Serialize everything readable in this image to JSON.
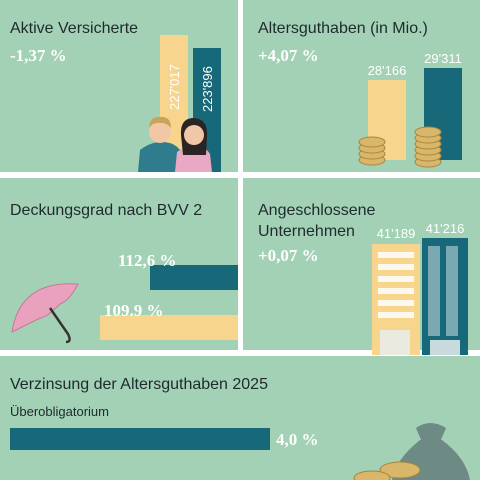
{
  "panels": [
    {
      "title": "Aktive Versicherte",
      "change": "-1,37 %",
      "values": [
        "227'017",
        "223'896"
      ]
    },
    {
      "title": "Altersguthaben (in Mio.)",
      "change": "+4,07 %",
      "values": [
        "28'166",
        "29'311"
      ]
    },
    {
      "title": "Deckungsgrad nach BVV 2",
      "values": [
        "112,6 %",
        "109.9 %"
      ]
    },
    {
      "title": [
        "Angeschlossene",
        "Unternehmen"
      ],
      "change": "+0,07 %",
      "values": [
        "41'189",
        "41'216"
      ]
    },
    {
      "title": "Verzinsung der Altersguthaben 2025",
      "subtitle": "Überobligatorium",
      "values": [
        "4,0 %"
      ]
    }
  ]
}
